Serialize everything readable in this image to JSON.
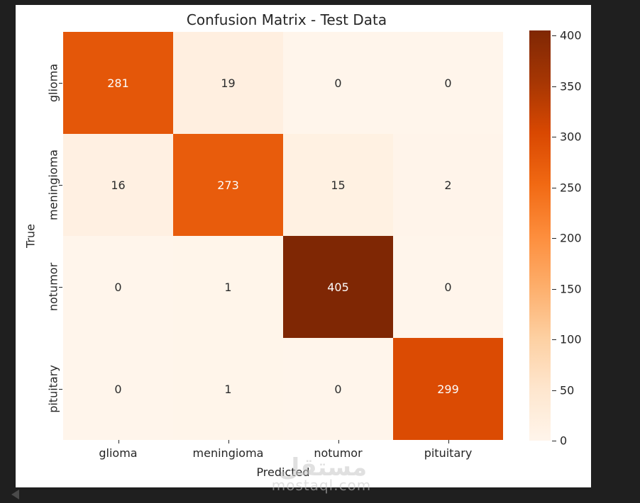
{
  "window": {
    "background_color": "#1f1f1f"
  },
  "figure": {
    "background_color": "#ffffff",
    "text_color": "#262626"
  },
  "chart_data": {
    "type": "heatmap",
    "title": "Confusion Matrix - Test Data",
    "xlabel": "Predicted",
    "ylabel": "True",
    "x_categories": [
      "glioma",
      "meningioma",
      "notumor",
      "pituitary"
    ],
    "y_categories": [
      "glioma",
      "meningioma",
      "notumor",
      "pituitary"
    ],
    "matrix": [
      [
        281,
        19,
        0,
        0
      ],
      [
        16,
        273,
        15,
        2
      ],
      [
        0,
        1,
        405,
        0
      ],
      [
        0,
        1,
        0,
        299
      ]
    ],
    "vmin": 0,
    "vmax": 405,
    "grid": false,
    "legend": null,
    "colormap": {
      "name": "Oranges",
      "stops": [
        "#fff5eb",
        "#fee6ce",
        "#fdd0a2",
        "#fdae6b",
        "#fd8d3c",
        "#f16913",
        "#d94801",
        "#a63603",
        "#7f2704"
      ]
    },
    "colorbar": {
      "position": "right",
      "ticks": [
        0,
        50,
        100,
        150,
        200,
        250,
        300,
        350,
        400
      ]
    },
    "annotation": {
      "light_text": "#fcfcfc",
      "dark_text": "#2b2b2b",
      "white_text_threshold": 0.5
    }
  },
  "watermark": {
    "logo_text": "مستقل",
    "domain_text": "mostaql.com",
    "color": "#c8c8c8"
  },
  "controls": {
    "prev_arrow_color": "#4a4a4a"
  }
}
